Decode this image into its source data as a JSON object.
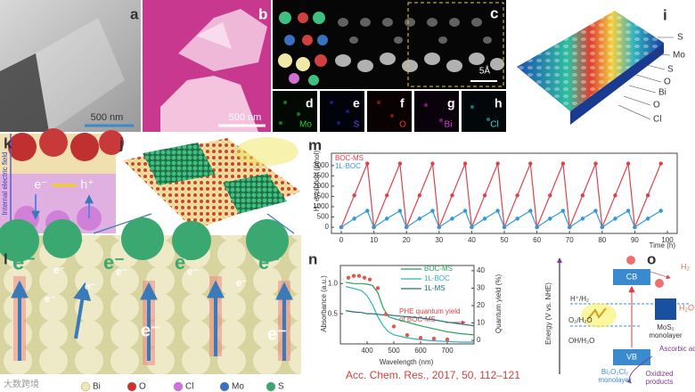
{
  "panel_labels": [
    "a",
    "b",
    "c",
    "d",
    "e",
    "f",
    "g",
    "h",
    "i",
    "j",
    "k",
    "l",
    "m",
    "n",
    "o"
  ],
  "scale_bars": [
    "500 nm",
    "500 nm",
    "5Å"
  ],
  "element_maps": [
    "Mo",
    "S",
    "O",
    "Bi",
    "Cl"
  ],
  "layer_labels": [
    "S",
    "Mo",
    "S",
    "O",
    "Bi",
    "O",
    "Cl"
  ],
  "panel_k": {
    "field": "Internal electric field",
    "electron": "e⁻",
    "hole": "h⁺"
  },
  "panel_l": {
    "electrons": [
      "e⁻",
      "e⁻",
      "e⁻",
      "e⁻",
      "e⁻",
      "e⁻",
      "e⁻",
      "e⁻",
      "e⁻",
      "e⁻",
      "e⁻",
      "e⁻"
    ]
  },
  "diagram_o": {
    "axis": "Energy (V vs. NHE)",
    "levels": [
      "H⁺/H₂",
      "O₂/H₂O",
      "OH/H₂O"
    ],
    "cb": "CB",
    "vb": "VB",
    "mos2": [
      "MoS₂",
      "monolayer"
    ],
    "h2": "H₂",
    "h2o": "H₂O",
    "donor": "Ascorbic acid",
    "boc": [
      "Bi₂O₂Cl₂",
      "monolayer"
    ],
    "products": [
      "Oxidized",
      "products"
    ]
  },
  "atom_legend": [
    "Bi",
    "O",
    "Cl",
    "Mo",
    "S"
  ],
  "citation": "Acc. Chem. Res., 2017, 50, 112–121",
  "watermark": "大数跨境",
  "chart_data": [
    {
      "type": "line",
      "xlabel": "Time (h)",
      "ylabel": "H₂ evolution (μmol)",
      "legend": "upper left",
      "markers": true,
      "x": [
        0,
        4,
        8,
        10,
        14,
        18,
        20,
        24,
        28,
        30,
        34,
        38,
        40,
        44,
        48,
        50,
        54,
        58,
        60,
        64,
        68,
        70,
        74,
        78,
        80,
        84,
        88,
        90,
        94,
        98
      ],
      "series": [
        {
          "name": "BOC-MS",
          "color": "#e0404a",
          "values": [
            0,
            1550,
            3100,
            0,
            1550,
            3100,
            0,
            1550,
            3100,
            0,
            1550,
            3100,
            0,
            1550,
            3100,
            0,
            1550,
            3100,
            0,
            1550,
            3100,
            0,
            1550,
            3100,
            0,
            1550,
            3100,
            0,
            1550,
            3100
          ]
        },
        {
          "name": "1L-BOC",
          "color": "#2e9bd6",
          "values": [
            0,
            420,
            800,
            0,
            420,
            800,
            0,
            420,
            800,
            0,
            420,
            800,
            0,
            420,
            800,
            0,
            420,
            800,
            0,
            420,
            800,
            0,
            420,
            800,
            0,
            420,
            800,
            0,
            420,
            800
          ]
        }
      ],
      "xlim": [
        -3,
        103
      ],
      "xticks": [
        0,
        10,
        20,
        30,
        40,
        50,
        60,
        70,
        80,
        90,
        100
      ],
      "ylim": [
        -300,
        3600
      ],
      "yticks": [
        0,
        500,
        1000,
        1500,
        2000,
        2500,
        3000
      ]
    },
    {
      "type": "line",
      "xlabel": "Wavelength (nm)",
      "ylabel": "Absorbance (a.u.)",
      "y2label": "Quantum yield (%)",
      "legend": "upper right",
      "annotation": [
        "PHE quantum yield",
        "of BOC-MS"
      ],
      "x": [
        320,
        350,
        380,
        400,
        420,
        440,
        460,
        480,
        500,
        550,
        600,
        650,
        700,
        750,
        800
      ],
      "series": [
        {
          "name": "BOC-MS",
          "color": "#2aa060",
          "values": [
            1.02,
            1.0,
            1.0,
            0.99,
            0.97,
            0.85,
            0.6,
            0.45,
            0.42,
            0.36,
            0.3,
            0.25,
            0.2,
            0.17,
            0.15
          ]
        },
        {
          "name": "1L-BOC",
          "color": "#2bb0c8",
          "values": [
            0.95,
            0.92,
            0.88,
            0.8,
            0.65,
            0.45,
            0.3,
            0.2,
            0.15,
            0.1,
            0.07,
            0.05,
            0.04,
            0.03,
            0.03
          ]
        },
        {
          "name": "1L-MS",
          "color": "#1d6f80",
          "values": [
            0.55,
            0.53,
            0.52,
            0.5,
            0.5,
            0.49,
            0.48,
            0.48,
            0.47,
            0.45,
            0.43,
            0.4,
            0.36,
            0.33,
            0.3
          ]
        },
        {
          "type": "scatter",
          "axis": "y2",
          "color": "#e05a4a",
          "x": [
            330,
            350,
            370,
            390,
            410,
            440,
            470,
            500,
            550,
            600,
            650,
            700
          ],
          "values": [
            36,
            37,
            37,
            36,
            35,
            30,
            15,
            8,
            3,
            1.5,
            1,
            0.5
          ]
        }
      ],
      "xlim": [
        300,
        800
      ],
      "xticks": [
        400,
        500,
        600,
        700
      ],
      "ylim": [
        0,
        1.3
      ],
      "yticks": [
        0.5,
        {
          "value": 1,
          "label": "1.0"
        }
      ],
      "y2lim": [
        -2,
        43
      ],
      "y2ticks": [
        0,
        10,
        20,
        30,
        40
      ]
    }
  ]
}
